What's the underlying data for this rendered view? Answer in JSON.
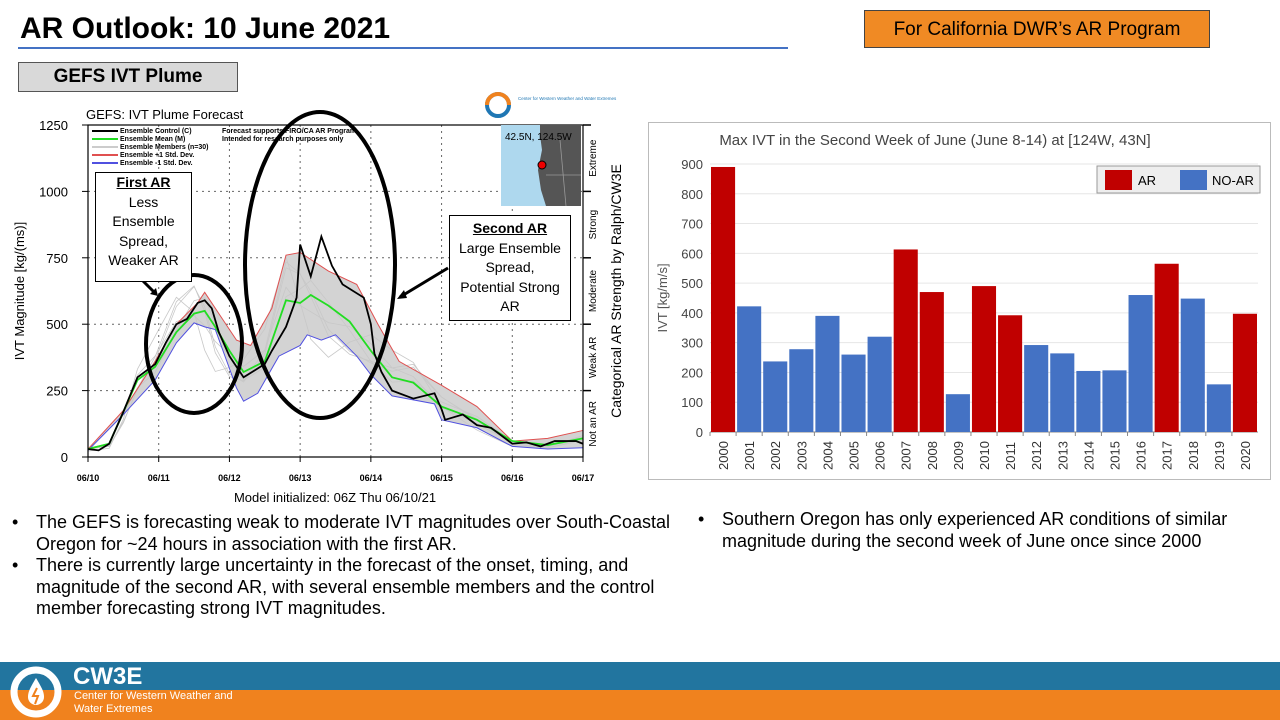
{
  "title": "AR Outlook: 10 June 2021",
  "badge": "For California DWR’s AR Program",
  "section": "GEFS IVT Plume",
  "plume": {
    "title": "GEFS: IVT Plume Forecast",
    "legend": [
      "Ensemble Control (C)",
      "Ensemble Mean (M)",
      "Ensemble Members (n=30)",
      "Ensemble +1 Std. Dev.",
      "Ensemble -1 Std. Dev."
    ],
    "disclaimer": [
      "Forecast supports FIRO/CA AR Program",
      "Intended for research purposes only"
    ],
    "ylabel": "IVT Magnitude [kg/(ms)]",
    "xlabel": "Model initialized: 06Z Thu 06/10/21",
    "right_label": "Categorical AR Strength by Ralph/CW3E",
    "categories": [
      "Not an AR",
      "Weak AR",
      "Moderate",
      "Strong",
      "Extreme"
    ],
    "location": "42.5N, 124.5W",
    "logo_text": "Center for Western Weather and Water Extremes",
    "first_ar": {
      "heading": "First AR",
      "text": [
        "Less",
        "Ensemble",
        "Spread,",
        "Weaker AR"
      ]
    },
    "second_ar": {
      "heading": "Second AR",
      "text": [
        "Large Ensemble",
        "Spread,",
        "Potential Strong",
        "AR"
      ]
    }
  },
  "bullets_left": [
    "The GEFS is forecasting weak to moderate IVT magnitudes over South-Coastal Oregon for ~24 hours in association with the first AR.",
    "There is currently large uncertainty in the forecast of the onset, timing, and magnitude of the second AR, with several ensemble members and the control member forecasting strong IVT magnitudes."
  ],
  "bullets_right": [
    "Southern Oregon has only experienced AR conditions of similar magnitude during the second week of June once since 2000"
  ],
  "footer": {
    "name": "CW3E",
    "sub": "Center for Western Weather and Water Extremes"
  },
  "colors": {
    "ar": "#c00000",
    "noar": "#4472c4",
    "footer_blue": "#22759f",
    "footer_orange": "#f0821e"
  },
  "chart_data": [
    {
      "type": "line",
      "title": "GEFS: IVT Plume Forecast",
      "xlabel": "Model initialized: 06Z Thu 06/10/21",
      "ylabel": "IVT Magnitude [kg/(ms)]",
      "x_unit": "days since 06/10 06Z",
      "xticks": [
        "06/10",
        "06/11",
        "06/12",
        "06/13",
        "06/14",
        "06/15",
        "06/16",
        "06/17"
      ],
      "yticks": [
        0,
        250,
        500,
        750,
        1000,
        1250
      ],
      "xlim": [
        0,
        7
      ],
      "ylim": [
        0,
        1250
      ],
      "series": [
        {
          "name": "Ensemble +1 Std. Dev.",
          "color": "#e05050",
          "points": [
            [
              0,
              30
            ],
            [
              0.5,
              175
            ],
            [
              0.95,
              360
            ],
            [
              1.25,
              500
            ],
            [
              1.55,
              580
            ],
            [
              1.65,
              620
            ],
            [
              1.9,
              520
            ],
            [
              2.1,
              440
            ],
            [
              2.3,
              420
            ],
            [
              2.6,
              560
            ],
            [
              2.8,
              760
            ],
            [
              3.0,
              770
            ],
            [
              3.4,
              700
            ],
            [
              3.8,
              650
            ],
            [
              4.1,
              500
            ],
            [
              4.4,
              360
            ],
            [
              5.0,
              270
            ],
            [
              5.5,
              190
            ],
            [
              6.0,
              60
            ],
            [
              6.5,
              70
            ],
            [
              7,
              100
            ]
          ]
        },
        {
          "name": "Ensemble -1 Std. Dev.",
          "color": "#5050e0",
          "points": [
            [
              0,
              25
            ],
            [
              0.5,
              160
            ],
            [
              0.95,
              290
            ],
            [
              1.25,
              430
            ],
            [
              1.5,
              505
            ],
            [
              1.65,
              490
            ],
            [
              1.8,
              480
            ],
            [
              2.1,
              260
            ],
            [
              2.2,
              210
            ],
            [
              2.4,
              240
            ],
            [
              2.7,
              380
            ],
            [
              3.0,
              420
            ],
            [
              3.1,
              460
            ],
            [
              3.3,
              440
            ],
            [
              3.5,
              460
            ],
            [
              3.8,
              380
            ],
            [
              4.0,
              310
            ],
            [
              4.3,
              230
            ],
            [
              4.9,
              200
            ],
            [
              5.0,
              140
            ],
            [
              5.5,
              110
            ],
            [
              6.0,
              40
            ],
            [
              6.5,
              30
            ],
            [
              7,
              35
            ]
          ]
        },
        {
          "name": "Ensemble Mean (M)",
          "color": "#22dd22",
          "points": [
            [
              0,
              30
            ],
            [
              0.3,
              50
            ],
            [
              0.5,
              170
            ],
            [
              0.7,
              290
            ],
            [
              0.95,
              340
            ],
            [
              1.25,
              470
            ],
            [
              1.5,
              540
            ],
            [
              1.65,
              550
            ],
            [
              1.8,
              490
            ],
            [
              2.0,
              400
            ],
            [
              2.2,
              320
            ],
            [
              2.5,
              360
            ],
            [
              2.8,
              590
            ],
            [
              3.0,
              580
            ],
            [
              3.15,
              610
            ],
            [
              3.4,
              570
            ],
            [
              3.7,
              510
            ],
            [
              4.0,
              400
            ],
            [
              4.3,
              300
            ],
            [
              4.6,
              280
            ],
            [
              5.0,
              190
            ],
            [
              5.5,
              140
            ],
            [
              6.0,
              60
            ],
            [
              6.5,
              45
            ],
            [
              7,
              70
            ]
          ]
        },
        {
          "name": "Ensemble Control (C)",
          "color": "#000000",
          "points": [
            [
              0,
              30
            ],
            [
              0.15,
              25
            ],
            [
              0.3,
              50
            ],
            [
              0.5,
              170
            ],
            [
              0.7,
              300
            ],
            [
              0.95,
              350
            ],
            [
              1.1,
              430
            ],
            [
              1.25,
              500
            ],
            [
              1.4,
              520
            ],
            [
              1.55,
              580
            ],
            [
              1.65,
              590
            ],
            [
              1.75,
              560
            ],
            [
              1.85,
              470
            ],
            [
              2.0,
              380
            ],
            [
              2.2,
              300
            ],
            [
              2.5,
              350
            ],
            [
              2.6,
              400
            ],
            [
              2.8,
              490
            ],
            [
              2.95,
              600
            ],
            [
              3.0,
              800
            ],
            [
              3.15,
              680
            ],
            [
              3.3,
              830
            ],
            [
              3.45,
              720
            ],
            [
              3.6,
              650
            ],
            [
              3.9,
              600
            ],
            [
              4.0,
              500
            ],
            [
              4.05,
              390
            ],
            [
              4.15,
              320
            ],
            [
              4.3,
              250
            ],
            [
              4.6,
              220
            ],
            [
              4.9,
              240
            ],
            [
              5.0,
              180
            ],
            [
              5.05,
              140
            ],
            [
              5.3,
              160
            ],
            [
              5.5,
              120
            ],
            [
              5.7,
              110
            ],
            [
              6.0,
              50
            ],
            [
              6.2,
              55
            ],
            [
              6.4,
              40
            ],
            [
              6.6,
              60
            ],
            [
              6.9,
              60
            ],
            [
              7,
              50
            ]
          ]
        }
      ]
    },
    {
      "type": "bar",
      "title": "Max IVT in the Second Week of June (June 8-14) at [124W, 43N]",
      "xlabel": "",
      "ylabel": "IVT [kg/m/s]",
      "ylim": [
        0,
        900
      ],
      "yticks": [
        0,
        100,
        200,
        300,
        400,
        500,
        600,
        700,
        800,
        900
      ],
      "legend": [
        "AR",
        "NO-AR"
      ],
      "legend_position": "top-right",
      "categories": [
        "2000",
        "2001",
        "2002",
        "2003",
        "2004",
        "2005",
        "2006",
        "2007",
        "2008",
        "2009",
        "2010",
        "2011",
        "2012",
        "2013",
        "2014",
        "2015",
        "2016",
        "2017",
        "2018",
        "2019",
        "2020"
      ],
      "values": [
        890,
        422,
        237,
        278,
        390,
        260,
        320,
        613,
        470,
        127,
        490,
        392,
        292,
        264,
        205,
        207,
        460,
        565,
        448,
        160,
        397
      ],
      "class": [
        "AR",
        "NO-AR",
        "NO-AR",
        "NO-AR",
        "NO-AR",
        "NO-AR",
        "NO-AR",
        "AR",
        "AR",
        "NO-AR",
        "AR",
        "AR",
        "NO-AR",
        "NO-AR",
        "NO-AR",
        "NO-AR",
        "NO-AR",
        "AR",
        "NO-AR",
        "NO-AR",
        "AR"
      ]
    }
  ]
}
